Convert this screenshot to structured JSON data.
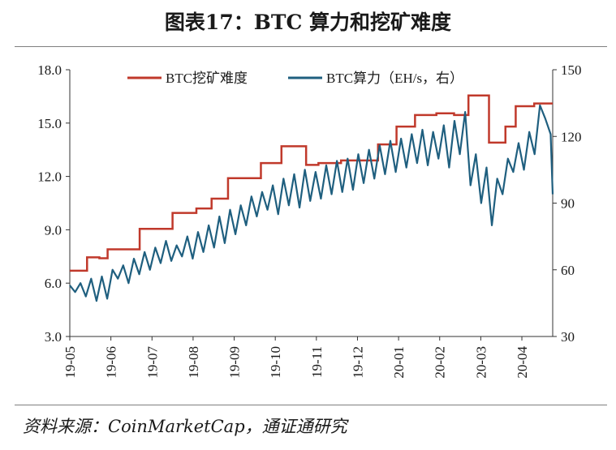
{
  "title": "图表17：BTC 算力和挖矿难度",
  "source": "资料来源：CoinMarketCap，通证通研究",
  "chart_data": {
    "type": "line",
    "x_ticks": [
      "19-05",
      "19-06",
      "19-07",
      "19-08",
      "19-09",
      "19-10",
      "19-11",
      "19-12",
      "20-01",
      "20-02",
      "20-03",
      "20-04"
    ],
    "y_left": {
      "ticks": [
        "3.0",
        "6.0",
        "9.0",
        "12.0",
        "15.0",
        "18.0"
      ],
      "lim": [
        3,
        18
      ]
    },
    "y_right": {
      "ticks": [
        "30",
        "60",
        "90",
        "120",
        "150"
      ],
      "lim": [
        30,
        150
      ]
    },
    "legend_position": "top-center",
    "series": [
      {
        "name": "BTC挖矿难度",
        "axis": "left",
        "color": "#c0392b",
        "steps": [
          [
            0.0,
            6.7
          ],
          [
            0.42,
            7.45
          ],
          [
            0.72,
            7.4
          ],
          [
            0.92,
            7.9
          ],
          [
            1.7,
            9.05
          ],
          [
            2.5,
            9.95
          ],
          [
            3.08,
            10.2
          ],
          [
            3.45,
            10.75
          ],
          [
            3.85,
            11.9
          ],
          [
            4.65,
            12.75
          ],
          [
            5.15,
            13.7
          ],
          [
            5.75,
            12.65
          ],
          [
            6.05,
            12.75
          ],
          [
            6.6,
            12.9
          ],
          [
            7.0,
            12.9
          ],
          [
            7.5,
            13.8
          ],
          [
            7.95,
            14.8
          ],
          [
            8.4,
            15.45
          ],
          [
            8.92,
            15.55
          ],
          [
            9.35,
            15.45
          ],
          [
            9.7,
            16.55
          ],
          [
            10.2,
            13.9
          ],
          [
            10.6,
            14.8
          ],
          [
            10.85,
            15.95
          ],
          [
            11.3,
            16.1
          ],
          [
            11.75,
            16.1
          ]
        ]
      },
      {
        "name": "BTC算力（EH/s，右）",
        "axis": "right",
        "color": "#1f5f7f",
        "x": [
          0.0,
          0.13,
          0.26,
          0.39,
          0.52,
          0.65,
          0.78,
          0.91,
          1.04,
          1.17,
          1.3,
          1.43,
          1.56,
          1.69,
          1.82,
          1.95,
          2.08,
          2.21,
          2.34,
          2.47,
          2.6,
          2.73,
          2.86,
          2.99,
          3.12,
          3.25,
          3.38,
          3.51,
          3.64,
          3.77,
          3.9,
          4.03,
          4.16,
          4.29,
          4.42,
          4.55,
          4.68,
          4.81,
          4.94,
          5.07,
          5.2,
          5.33,
          5.46,
          5.59,
          5.72,
          5.85,
          5.98,
          6.11,
          6.24,
          6.37,
          6.5,
          6.63,
          6.76,
          6.89,
          7.02,
          7.15,
          7.28,
          7.41,
          7.54,
          7.67,
          7.8,
          7.93,
          8.06,
          8.19,
          8.32,
          8.45,
          8.58,
          8.71,
          8.84,
          8.97,
          9.1,
          9.23,
          9.36,
          9.49,
          9.62,
          9.75,
          9.88,
          10.01,
          10.14,
          10.27,
          10.4,
          10.53,
          10.66,
          10.79,
          10.92,
          11.05,
          11.18,
          11.31,
          11.44,
          11.57,
          11.7,
          11.75
        ],
        "values": [
          53,
          50,
          54,
          48,
          56,
          46,
          57,
          47,
          60,
          56,
          62,
          54,
          65,
          58,
          68,
          60,
          70,
          63,
          73,
          64,
          71,
          66,
          75,
          65,
          77,
          68,
          80,
          70,
          84,
          72,
          87,
          76,
          89,
          80,
          93,
          84,
          95,
          87,
          98,
          85,
          101,
          89,
          103,
          88,
          105,
          91,
          104,
          92,
          107,
          94,
          109,
          95,
          110,
          96,
          112,
          99,
          114,
          101,
          116,
          103,
          118,
          104,
          119,
          106,
          121,
          108,
          123,
          107,
          122,
          110,
          125,
          106,
          127,
          112,
          131,
          98,
          112,
          90,
          106,
          80,
          101,
          94,
          110,
          104,
          117,
          105,
          122,
          112,
          134,
          128,
          121,
          94
        ]
      }
    ]
  }
}
